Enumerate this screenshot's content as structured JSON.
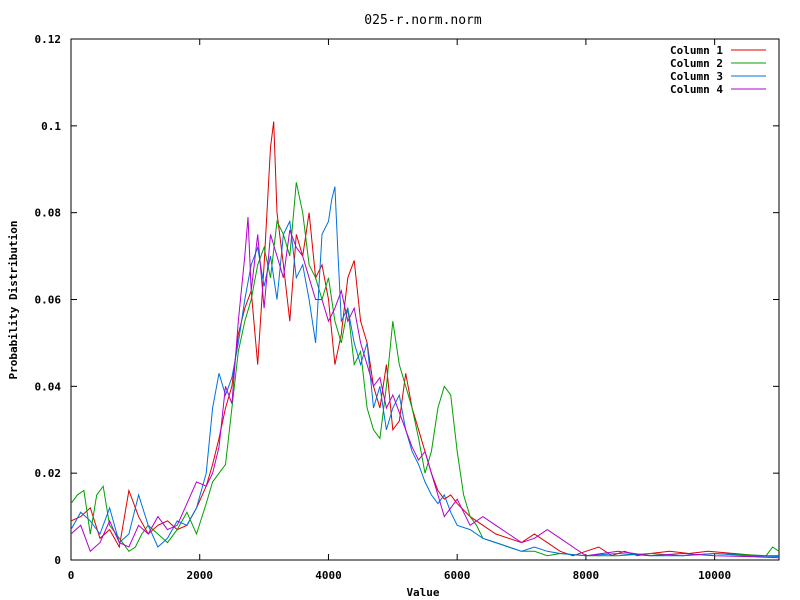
{
  "chart_data": {
    "type": "line",
    "title": "025-r.norm.norm",
    "xlabel": "Value",
    "ylabel": "Probability Distribution",
    "xlim": [
      0,
      11000
    ],
    "ylim": [
      0,
      0.12
    ],
    "x_ticks": [
      0,
      2000,
      4000,
      6000,
      8000,
      10000
    ],
    "y_ticks": [
      0,
      0.02,
      0.04,
      0.06,
      0.08,
      0.1,
      0.12
    ],
    "x_tick_labels": [
      "0",
      "2000",
      "4000",
      "6000",
      "8000",
      "10000"
    ],
    "y_tick_labels": [
      "0",
      "0.02",
      "0.04",
      "0.06",
      "0.08",
      "0.1",
      "0.12"
    ],
    "legend_position": "top-right",
    "grid": false,
    "series": [
      {
        "name": "Column 1",
        "color": "#dd0000",
        "points": [
          [
            0,
            0.009
          ],
          [
            150,
            0.01
          ],
          [
            300,
            0.012
          ],
          [
            450,
            0.005
          ],
          [
            600,
            0.007
          ],
          [
            750,
            0.003
          ],
          [
            900,
            0.016
          ],
          [
            1050,
            0.01
          ],
          [
            1200,
            0.006
          ],
          [
            1350,
            0.008
          ],
          [
            1500,
            0.009
          ],
          [
            1650,
            0.007
          ],
          [
            1800,
            0.008
          ],
          [
            1950,
            0.012
          ],
          [
            2100,
            0.017
          ],
          [
            2200,
            0.022
          ],
          [
            2300,
            0.028
          ],
          [
            2400,
            0.035
          ],
          [
            2500,
            0.04
          ],
          [
            2600,
            0.052
          ],
          [
            2700,
            0.058
          ],
          [
            2800,
            0.062
          ],
          [
            2900,
            0.045
          ],
          [
            3000,
            0.068
          ],
          [
            3100,
            0.095
          ],
          [
            3150,
            0.101
          ],
          [
            3200,
            0.08
          ],
          [
            3300,
            0.068
          ],
          [
            3400,
            0.055
          ],
          [
            3500,
            0.075
          ],
          [
            3600,
            0.07
          ],
          [
            3700,
            0.08
          ],
          [
            3800,
            0.065
          ],
          [
            3900,
            0.068
          ],
          [
            4000,
            0.06
          ],
          [
            4100,
            0.045
          ],
          [
            4200,
            0.052
          ],
          [
            4300,
            0.065
          ],
          [
            4400,
            0.069
          ],
          [
            4500,
            0.055
          ],
          [
            4600,
            0.05
          ],
          [
            4700,
            0.04
          ],
          [
            4800,
            0.035
          ],
          [
            4900,
            0.045
          ],
          [
            5000,
            0.03
          ],
          [
            5100,
            0.032
          ],
          [
            5200,
            0.043
          ],
          [
            5300,
            0.035
          ],
          [
            5400,
            0.03
          ],
          [
            5500,
            0.025
          ],
          [
            5600,
            0.02
          ],
          [
            5700,
            0.016
          ],
          [
            5800,
            0.014
          ],
          [
            5900,
            0.015
          ],
          [
            6000,
            0.013
          ],
          [
            6200,
            0.01
          ],
          [
            6400,
            0.008
          ],
          [
            6600,
            0.006
          ],
          [
            6800,
            0.005
          ],
          [
            7000,
            0.004
          ],
          [
            7200,
            0.006
          ],
          [
            7400,
            0.004
          ],
          [
            7600,
            0.002
          ],
          [
            7800,
            0.001
          ],
          [
            8000,
            0.002
          ],
          [
            8200,
            0.003
          ],
          [
            8400,
            0.001
          ],
          [
            8600,
            0.002
          ],
          [
            8800,
            0.001
          ],
          [
            9000,
            0.0015
          ],
          [
            9300,
            0.002
          ],
          [
            9600,
            0.0015
          ],
          [
            9900,
            0.002
          ],
          [
            10300,
            0.0015
          ],
          [
            10700,
            0.001
          ],
          [
            11000,
            0.001
          ]
        ]
      },
      {
        "name": "Column 2",
        "color": "#00a000",
        "points": [
          [
            0,
            0.013
          ],
          [
            100,
            0.015
          ],
          [
            200,
            0.016
          ],
          [
            300,
            0.006
          ],
          [
            400,
            0.015
          ],
          [
            500,
            0.017
          ],
          [
            600,
            0.008
          ],
          [
            700,
            0.006
          ],
          [
            800,
            0.004
          ],
          [
            900,
            0.002
          ],
          [
            1000,
            0.003
          ],
          [
            1100,
            0.006
          ],
          [
            1200,
            0.008
          ],
          [
            1350,
            0.006
          ],
          [
            1500,
            0.004
          ],
          [
            1650,
            0.007
          ],
          [
            1800,
            0.011
          ],
          [
            1950,
            0.006
          ],
          [
            2100,
            0.013
          ],
          [
            2200,
            0.018
          ],
          [
            2300,
            0.02
          ],
          [
            2400,
            0.022
          ],
          [
            2500,
            0.035
          ],
          [
            2600,
            0.048
          ],
          [
            2700,
            0.055
          ],
          [
            2800,
            0.06
          ],
          [
            2900,
            0.068
          ],
          [
            3000,
            0.072
          ],
          [
            3100,
            0.065
          ],
          [
            3200,
            0.078
          ],
          [
            3300,
            0.075
          ],
          [
            3400,
            0.07
          ],
          [
            3500,
            0.087
          ],
          [
            3600,
            0.08
          ],
          [
            3700,
            0.068
          ],
          [
            3800,
            0.065
          ],
          [
            3900,
            0.06
          ],
          [
            4000,
            0.065
          ],
          [
            4100,
            0.055
          ],
          [
            4200,
            0.05
          ],
          [
            4300,
            0.058
          ],
          [
            4400,
            0.045
          ],
          [
            4500,
            0.048
          ],
          [
            4600,
            0.035
          ],
          [
            4700,
            0.03
          ],
          [
            4800,
            0.028
          ],
          [
            4900,
            0.04
          ],
          [
            5000,
            0.055
          ],
          [
            5100,
            0.045
          ],
          [
            5200,
            0.04
          ],
          [
            5300,
            0.035
          ],
          [
            5400,
            0.028
          ],
          [
            5500,
            0.02
          ],
          [
            5600,
            0.025
          ],
          [
            5700,
            0.035
          ],
          [
            5800,
            0.04
          ],
          [
            5900,
            0.038
          ],
          [
            6000,
            0.025
          ],
          [
            6100,
            0.015
          ],
          [
            6200,
            0.01
          ],
          [
            6300,
            0.008
          ],
          [
            6400,
            0.005
          ],
          [
            6600,
            0.004
          ],
          [
            6800,
            0.003
          ],
          [
            7000,
            0.002
          ],
          [
            7200,
            0.002
          ],
          [
            7400,
            0.001
          ],
          [
            7600,
            0.0015
          ],
          [
            8000,
            0.001
          ],
          [
            8500,
            0.001
          ],
          [
            9000,
            0.0015
          ],
          [
            9500,
            0.001
          ],
          [
            10000,
            0.0015
          ],
          [
            10500,
            0.0012
          ],
          [
            10800,
            0.001
          ],
          [
            10900,
            0.003
          ],
          [
            11000,
            0.002
          ]
        ]
      },
      {
        "name": "Column 3",
        "color": "#0070e0",
        "points": [
          [
            0,
            0.007
          ],
          [
            150,
            0.011
          ],
          [
            300,
            0.009
          ],
          [
            450,
            0.006
          ],
          [
            600,
            0.012
          ],
          [
            750,
            0.004
          ],
          [
            900,
            0.006
          ],
          [
            1050,
            0.015
          ],
          [
            1200,
            0.008
          ],
          [
            1350,
            0.003
          ],
          [
            1500,
            0.005
          ],
          [
            1650,
            0.009
          ],
          [
            1800,
            0.008
          ],
          [
            1950,
            0.012
          ],
          [
            2100,
            0.02
          ],
          [
            2200,
            0.035
          ],
          [
            2300,
            0.043
          ],
          [
            2400,
            0.038
          ],
          [
            2500,
            0.042
          ],
          [
            2600,
            0.05
          ],
          [
            2700,
            0.06
          ],
          [
            2800,
            0.068
          ],
          [
            2900,
            0.072
          ],
          [
            3000,
            0.063
          ],
          [
            3100,
            0.07
          ],
          [
            3200,
            0.06
          ],
          [
            3300,
            0.075
          ],
          [
            3400,
            0.078
          ],
          [
            3500,
            0.065
          ],
          [
            3600,
            0.068
          ],
          [
            3700,
            0.06
          ],
          [
            3800,
            0.05
          ],
          [
            3900,
            0.075
          ],
          [
            4000,
            0.078
          ],
          [
            4050,
            0.083
          ],
          [
            4100,
            0.086
          ],
          [
            4150,
            0.07
          ],
          [
            4200,
            0.055
          ],
          [
            4300,
            0.058
          ],
          [
            4400,
            0.05
          ],
          [
            4500,
            0.045
          ],
          [
            4600,
            0.05
          ],
          [
            4700,
            0.035
          ],
          [
            4800,
            0.04
          ],
          [
            4900,
            0.03
          ],
          [
            5000,
            0.035
          ],
          [
            5100,
            0.038
          ],
          [
            5200,
            0.03
          ],
          [
            5300,
            0.025
          ],
          [
            5400,
            0.022
          ],
          [
            5500,
            0.018
          ],
          [
            5600,
            0.015
          ],
          [
            5700,
            0.013
          ],
          [
            5800,
            0.015
          ],
          [
            5900,
            0.011
          ],
          [
            6000,
            0.008
          ],
          [
            6200,
            0.007
          ],
          [
            6400,
            0.005
          ],
          [
            6600,
            0.004
          ],
          [
            6800,
            0.003
          ],
          [
            7000,
            0.002
          ],
          [
            7200,
            0.003
          ],
          [
            7400,
            0.002
          ],
          [
            7600,
            0.0015
          ],
          [
            8000,
            0.001
          ],
          [
            8500,
            0.0015
          ],
          [
            9000,
            0.001
          ],
          [
            9500,
            0.001
          ],
          [
            10000,
            0.0015
          ],
          [
            10500,
            0.001
          ],
          [
            11000,
            0.0008
          ]
        ]
      },
      {
        "name": "Column 4",
        "color": "#b000d0",
        "points": [
          [
            0,
            0.006
          ],
          [
            150,
            0.008
          ],
          [
            300,
            0.002
          ],
          [
            450,
            0.004
          ],
          [
            600,
            0.009
          ],
          [
            750,
            0.004
          ],
          [
            900,
            0.003
          ],
          [
            1050,
            0.008
          ],
          [
            1200,
            0.006
          ],
          [
            1350,
            0.01
          ],
          [
            1500,
            0.007
          ],
          [
            1650,
            0.008
          ],
          [
            1800,
            0.013
          ],
          [
            1950,
            0.018
          ],
          [
            2100,
            0.017
          ],
          [
            2200,
            0.02
          ],
          [
            2300,
            0.026
          ],
          [
            2400,
            0.04
          ],
          [
            2500,
            0.036
          ],
          [
            2600,
            0.055
          ],
          [
            2700,
            0.07
          ],
          [
            2750,
            0.079
          ],
          [
            2800,
            0.062
          ],
          [
            2900,
            0.075
          ],
          [
            3000,
            0.058
          ],
          [
            3100,
            0.075
          ],
          [
            3200,
            0.07
          ],
          [
            3300,
            0.065
          ],
          [
            3400,
            0.076
          ],
          [
            3500,
            0.072
          ],
          [
            3600,
            0.07
          ],
          [
            3700,
            0.065
          ],
          [
            3800,
            0.06
          ],
          [
            3900,
            0.06
          ],
          [
            4000,
            0.055
          ],
          [
            4100,
            0.058
          ],
          [
            4200,
            0.062
          ],
          [
            4300,
            0.055
          ],
          [
            4400,
            0.058
          ],
          [
            4500,
            0.05
          ],
          [
            4600,
            0.045
          ],
          [
            4700,
            0.04
          ],
          [
            4800,
            0.042
          ],
          [
            4900,
            0.035
          ],
          [
            5000,
            0.038
          ],
          [
            5100,
            0.034
          ],
          [
            5200,
            0.03
          ],
          [
            5300,
            0.026
          ],
          [
            5400,
            0.023
          ],
          [
            5500,
            0.025
          ],
          [
            5600,
            0.02
          ],
          [
            5700,
            0.015
          ],
          [
            5800,
            0.01
          ],
          [
            5900,
            0.012
          ],
          [
            6000,
            0.014
          ],
          [
            6100,
            0.011
          ],
          [
            6200,
            0.008
          ],
          [
            6400,
            0.01
          ],
          [
            6600,
            0.008
          ],
          [
            6800,
            0.006
          ],
          [
            7000,
            0.004
          ],
          [
            7200,
            0.005
          ],
          [
            7400,
            0.007
          ],
          [
            7600,
            0.005
          ],
          [
            7800,
            0.003
          ],
          [
            8000,
            0.001
          ],
          [
            8500,
            0.002
          ],
          [
            9000,
            0.001
          ],
          [
            9500,
            0.0015
          ],
          [
            10000,
            0.001
          ],
          [
            10500,
            0.0008
          ],
          [
            11000,
            0.0005
          ]
        ]
      }
    ]
  }
}
